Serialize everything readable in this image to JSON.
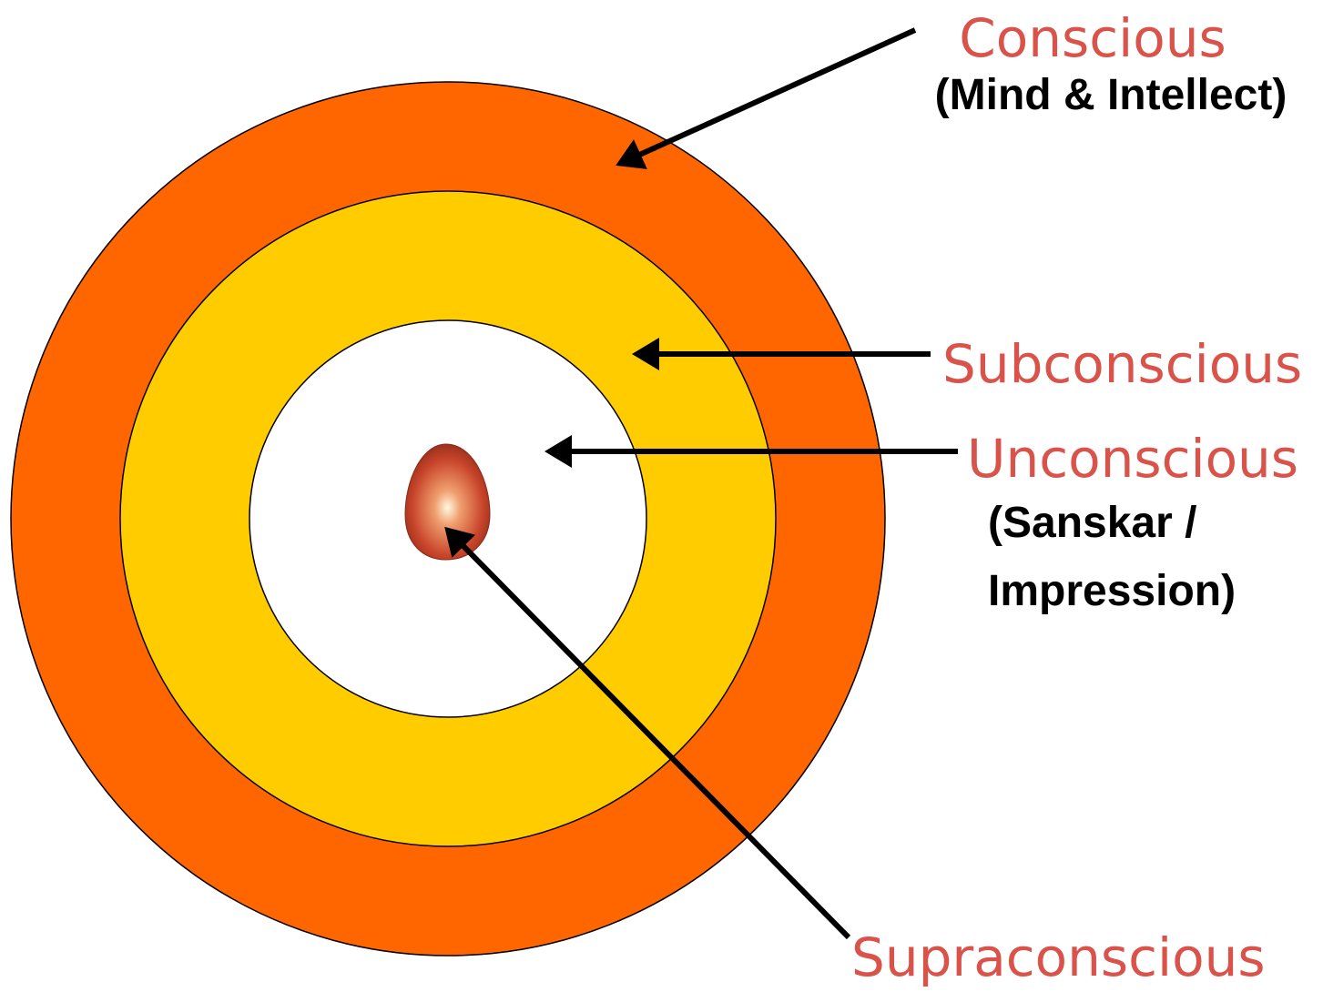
{
  "labels": [
    {
      "name": "Conscious",
      "note": "(Mind & Intellect)"
    },
    {
      "name": "Subconscious"
    },
    {
      "name": "Unconscious",
      "note": "(Sanskar /",
      "note2": "Impression)"
    },
    {
      "name": "Supraconscious"
    }
  ]
}
